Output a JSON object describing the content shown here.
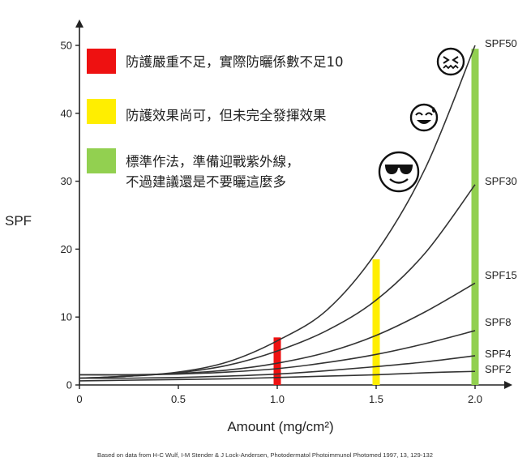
{
  "chart_data": {
    "type": "line",
    "xlabel": "Amount (mg/cm²)",
    "ylabel": "SPF",
    "xlim": [
      0,
      2.0
    ],
    "ylim": [
      0,
      50
    ],
    "x_ticks": [
      "0",
      "0.5",
      "1.0",
      "1.5",
      "2.0"
    ],
    "y_ticks": [
      "0",
      "10",
      "20",
      "30",
      "40",
      "50"
    ],
    "grid": false,
    "x": [
      0,
      0.25,
      0.5,
      0.75,
      1.0,
      1.25,
      1.5,
      1.75,
      2.0
    ],
    "series": [
      {
        "name": "SPF50",
        "values": [
          1.0,
          1.3,
          1.9,
          3.4,
          6.5,
          11.0,
          19.5,
          32.0,
          50.0
        ]
      },
      {
        "name": "SPF30",
        "values": [
          1.0,
          1.3,
          1.8,
          2.9,
          5.0,
          8.0,
          12.5,
          19.5,
          29.5
        ]
      },
      {
        "name": "SPF15",
        "values": [
          1.5,
          1.5,
          1.7,
          2.2,
          3.2,
          4.8,
          7.3,
          10.8,
          15.0
        ]
      },
      {
        "name": "SPF8",
        "values": [
          1.5,
          1.5,
          1.6,
          1.9,
          2.4,
          3.3,
          4.5,
          6.1,
          8.0
        ]
      },
      {
        "name": "SPF4",
        "values": [
          1.0,
          1.0,
          1.1,
          1.3,
          1.6,
          2.1,
          2.7,
          3.4,
          4.3
        ]
      },
      {
        "name": "SPF2",
        "values": [
          0.6,
          0.7,
          0.8,
          0.9,
          1.1,
          1.3,
          1.5,
          1.8,
          2.0
        ]
      }
    ],
    "bars": [
      {
        "x": 1.0,
        "value": 7.0,
        "color": "#ee1111"
      },
      {
        "x": 1.5,
        "value": 18.5,
        "color": "#ffee00"
      },
      {
        "x": 2.0,
        "value": 49.5,
        "color": "#92d050"
      }
    ],
    "legend_placement": "top-left",
    "legend": [
      {
        "color": "#ee1111",
        "lines": [
          "防護嚴重不足，實際防曬係數不足10"
        ],
        "emoji": "dizzy-face-icon"
      },
      {
        "color": "#ffee00",
        "lines": [
          "防護效果尚可，但未完全發揮效果"
        ],
        "emoji": "sweat-smile-icon"
      },
      {
        "color": "#92d050",
        "lines": [
          "標準作法，準備迎戰紫外線，",
          "不過建議還是不要曬這麼多"
        ],
        "emoji": "sunglasses-face-icon"
      }
    ],
    "source": "Based on data from H-C Wulf, I-M Stender & J Lock-Andersen, Photodermatol Photoimmunol Photomed 1997, 13, 129-132"
  }
}
